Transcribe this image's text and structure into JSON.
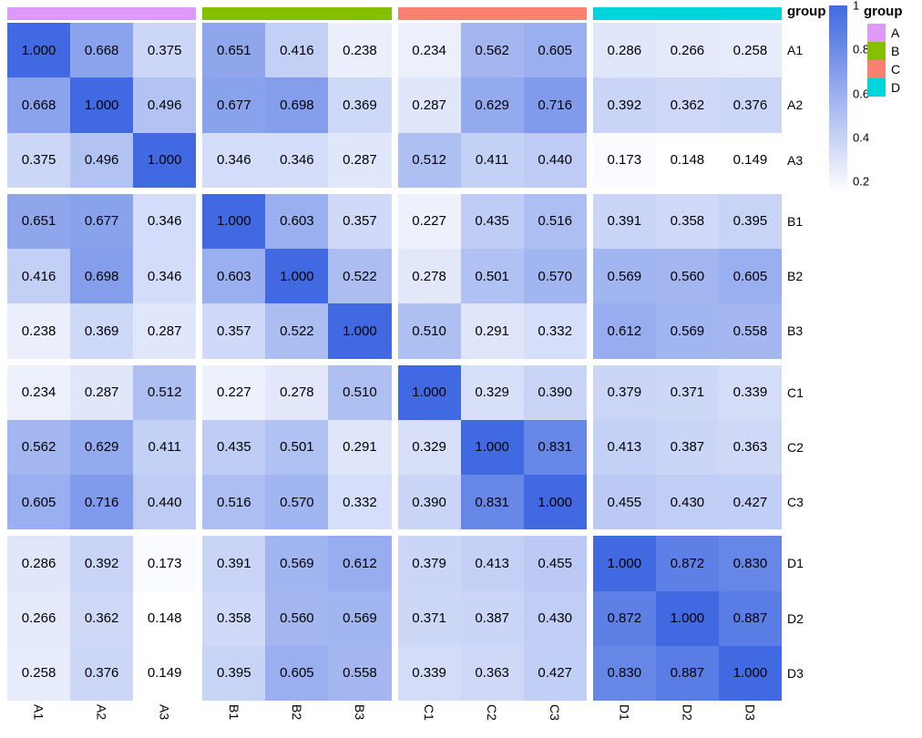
{
  "chart_data": {
    "type": "heatmap",
    "annotation_label": "group",
    "value_format_decimals": 3,
    "color_scale": {
      "min": 0.148,
      "max": 1.0,
      "min_color": "#FFFFFF",
      "max_color": "#4169E1"
    },
    "colorbar": {
      "ticks": [
        {
          "label": "1",
          "value": 1.0
        },
        {
          "label": "0.8",
          "value": 0.8
        },
        {
          "label": "0.6",
          "value": 0.6
        },
        {
          "label": "0.4",
          "value": 0.4
        },
        {
          "label": "0.2",
          "value": 0.2
        }
      ]
    },
    "groups": [
      {
        "name": "A",
        "color": "#DF99F7",
        "members": [
          "A1",
          "A2",
          "A3"
        ]
      },
      {
        "name": "B",
        "color": "#84C000",
        "members": [
          "B1",
          "B2",
          "B3"
        ]
      },
      {
        "name": "C",
        "color": "#FA8072",
        "members": [
          "C1",
          "C2",
          "C3"
        ]
      },
      {
        "name": "D",
        "color": "#00D5DC",
        "members": [
          "D1",
          "D2",
          "D3"
        ]
      }
    ],
    "matrix": [
      [
        1.0,
        0.668,
        0.375,
        0.651,
        0.416,
        0.238,
        0.234,
        0.562,
        0.605,
        0.286,
        0.266,
        0.258
      ],
      [
        0.668,
        1.0,
        0.496,
        0.677,
        0.698,
        0.369,
        0.287,
        0.629,
        0.716,
        0.392,
        0.362,
        0.376
      ],
      [
        0.375,
        0.496,
        1.0,
        0.346,
        0.346,
        0.287,
        0.512,
        0.411,
        0.44,
        0.173,
        0.148,
        0.149
      ],
      [
        0.651,
        0.677,
        0.346,
        1.0,
        0.603,
        0.357,
        0.227,
        0.435,
        0.516,
        0.391,
        0.358,
        0.395
      ],
      [
        0.416,
        0.698,
        0.346,
        0.603,
        1.0,
        0.522,
        0.278,
        0.501,
        0.57,
        0.569,
        0.56,
        0.605
      ],
      [
        0.238,
        0.369,
        0.287,
        0.357,
        0.522,
        1.0,
        0.51,
        0.291,
        0.332,
        0.612,
        0.569,
        0.558
      ],
      [
        0.234,
        0.287,
        0.512,
        0.227,
        0.278,
        0.51,
        1.0,
        0.329,
        0.39,
        0.379,
        0.371,
        0.339
      ],
      [
        0.562,
        0.629,
        0.411,
        0.435,
        0.501,
        0.291,
        0.329,
        1.0,
        0.831,
        0.413,
        0.387,
        0.363
      ],
      [
        0.605,
        0.716,
        0.44,
        0.516,
        0.57,
        0.332,
        0.39,
        0.831,
        1.0,
        0.455,
        0.43,
        0.427
      ],
      [
        0.286,
        0.392,
        0.173,
        0.391,
        0.569,
        0.612,
        0.379,
        0.413,
        0.455,
        1.0,
        0.872,
        0.83
      ],
      [
        0.266,
        0.362,
        0.148,
        0.358,
        0.56,
        0.569,
        0.371,
        0.387,
        0.43,
        0.872,
        1.0,
        0.887
      ],
      [
        0.258,
        0.376,
        0.149,
        0.395,
        0.605,
        0.558,
        0.339,
        0.363,
        0.427,
        0.83,
        0.887,
        1.0
      ]
    ]
  },
  "legend": {
    "title": "group"
  }
}
